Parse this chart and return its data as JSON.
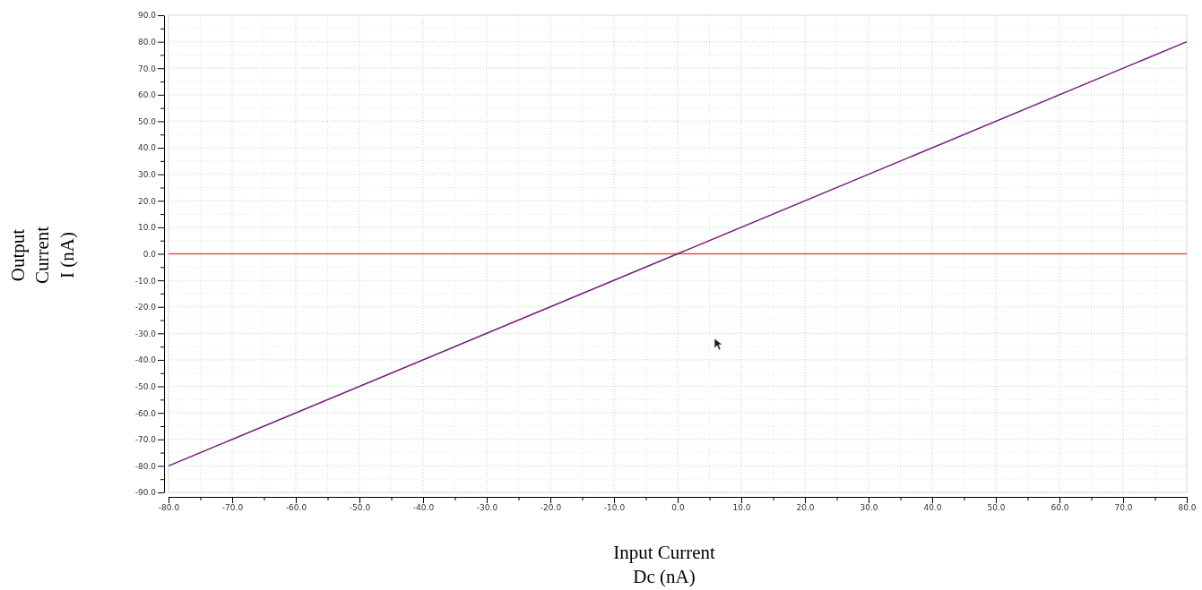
{
  "chart_data": {
    "type": "line",
    "xlabel": "Input Current\nDc (nA)",
    "ylabel": "Output\nCurrent\nI (nA)",
    "x": [
      -80,
      80
    ],
    "series": [
      {
        "color": "#7a1f80",
        "values": [
          -80,
          80
        ]
      }
    ],
    "xlim": [
      -80,
      80
    ],
    "ylim": [
      -90,
      90
    ],
    "xticks": [
      {
        "value": -80,
        "label": "-80.0"
      },
      {
        "value": -75,
        "label": null
      },
      {
        "value": -70,
        "label": "-70.0"
      },
      {
        "value": -65,
        "label": null
      },
      {
        "value": -60,
        "label": "-60.0"
      },
      {
        "value": -55,
        "label": null
      },
      {
        "value": -50,
        "label": "-50.0"
      },
      {
        "value": -45,
        "label": null
      },
      {
        "value": -40,
        "label": "-40.0"
      },
      {
        "value": -35,
        "label": null
      },
      {
        "value": -30,
        "label": "-30.0"
      },
      {
        "value": -25,
        "label": null
      },
      {
        "value": -20,
        "label": "-20.0"
      },
      {
        "value": -15,
        "label": null
      },
      {
        "value": -10,
        "label": "-10.0"
      },
      {
        "value": -5,
        "label": null
      },
      {
        "value": 0,
        "label": "0.0"
      },
      {
        "value": 5,
        "label": null
      },
      {
        "value": 10,
        "label": "10.0"
      },
      {
        "value": 15,
        "label": null
      },
      {
        "value": 20,
        "label": "20.0"
      },
      {
        "value": 25,
        "label": null
      },
      {
        "value": 30,
        "label": "30.0"
      },
      {
        "value": 35,
        "label": null
      },
      {
        "value": 40,
        "label": "40.0"
      },
      {
        "value": 45,
        "label": null
      },
      {
        "value": 50,
        "label": "50.0"
      },
      {
        "value": 55,
        "label": null
      },
      {
        "value": 60,
        "label": "60.0"
      },
      {
        "value": 65,
        "label": null
      },
      {
        "value": 70,
        "label": "70.0"
      },
      {
        "value": 75,
        "label": null
      },
      {
        "value": 80,
        "label": "80.0"
      }
    ],
    "yticks": [
      {
        "value": -90,
        "label": "-90.0"
      },
      {
        "value": -85,
        "label": null
      },
      {
        "value": -80,
        "label": "-80.0"
      },
      {
        "value": -75,
        "label": null
      },
      {
        "value": -70,
        "label": "-70.0"
      },
      {
        "value": -65,
        "label": null
      },
      {
        "value": -60,
        "label": "-60.0"
      },
      {
        "value": -55,
        "label": null
      },
      {
        "value": -50,
        "label": "-50.0"
      },
      {
        "value": -45,
        "label": null
      },
      {
        "value": -40,
        "label": "-40.0"
      },
      {
        "value": -35,
        "label": null
      },
      {
        "value": -30,
        "label": "-30.0"
      },
      {
        "value": -25,
        "label": null
      },
      {
        "value": -20,
        "label": "-20.0"
      },
      {
        "value": -15,
        "label": null
      },
      {
        "value": -10,
        "label": "-10.0"
      },
      {
        "value": -5,
        "label": null
      },
      {
        "value": 0,
        "label": "0.0"
      },
      {
        "value": 5,
        "label": null
      },
      {
        "value": 10,
        "label": "10.0"
      },
      {
        "value": 15,
        "label": null
      },
      {
        "value": 20,
        "label": "20.0"
      },
      {
        "value": 25,
        "label": null
      },
      {
        "value": 30,
        "label": "30.0"
      },
      {
        "value": 35,
        "label": null
      },
      {
        "value": 40,
        "label": "40.0"
      },
      {
        "value": 45,
        "label": null
      },
      {
        "value": 50,
        "label": "50.0"
      },
      {
        "value": 55,
        "label": null
      },
      {
        "value": 60,
        "label": "60.0"
      },
      {
        "value": 65,
        "label": null
      },
      {
        "value": 70,
        "label": "70.0"
      },
      {
        "value": 75,
        "label": null
      },
      {
        "value": 80,
        "label": "80.0"
      },
      {
        "value": 85,
        "label": null
      },
      {
        "value": 90,
        "label": "90.0"
      }
    ],
    "grid": true,
    "marker": "none",
    "line_style": "solid",
    "ref_lines": [
      {
        "axis": "y",
        "value": 0,
        "color": "#d9534f"
      }
    ]
  }
}
